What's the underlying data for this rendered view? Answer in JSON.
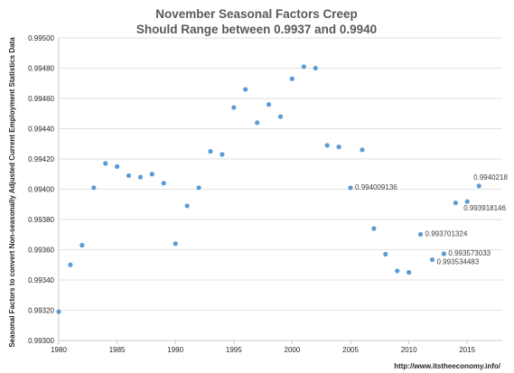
{
  "chart_data": {
    "type": "scatter",
    "title": [
      "November Seasonal Factors Creep",
      "Should Range between 0.9937 and  0.9940"
    ],
    "xlabel": "",
    "ylabel": "Seasonal Factors to convert Non-seasonally Adjusted Current Employment Statistics Data",
    "xlim": [
      1980,
      2018
    ],
    "ylim": [
      0.993,
      0.995
    ],
    "x_ticks": [
      "1980",
      "1985",
      "1990",
      "1995",
      "2000",
      "2005",
      "2010",
      "2015"
    ],
    "y_ticks": [
      "0.99300",
      "0.99320",
      "0.99340",
      "0.99360",
      "0.99380",
      "0.99400",
      "0.99420",
      "0.99440",
      "0.99460",
      "0.99480",
      "0.99500"
    ],
    "grid": "horizontal",
    "legend": "none",
    "series_color": "#5b9bd5",
    "x": [
      1980,
      1981,
      1982,
      1983,
      1984,
      1985,
      1986,
      1987,
      1988,
      1989,
      1990,
      1991,
      1992,
      1993,
      1994,
      1995,
      1996,
      1997,
      1998,
      1999,
      2000,
      2001,
      2002,
      2003,
      2004,
      2005,
      2006,
      2007,
      2008,
      2009,
      2010,
      2011,
      2012,
      2013,
      2014,
      2015,
      2016
    ],
    "y": [
      0.99319,
      0.9935,
      0.99363,
      0.99401,
      0.99417,
      0.99415,
      0.99409,
      0.99408,
      0.9941,
      0.99404,
      0.99364,
      0.99389,
      0.99401,
      0.99425,
      0.99423,
      0.99454,
      0.99466,
      0.99444,
      0.99456,
      0.99448,
      0.99473,
      0.99481,
      0.9948,
      0.99429,
      0.99428,
      0.994009136,
      0.99426,
      0.99374,
      0.99357,
      0.99346,
      0.99345,
      0.993701324,
      0.993534483,
      0.993573033,
      0.99391,
      0.993918146,
      0.9940218
    ],
    "annotations": [
      {
        "label": "0.994009136",
        "x": 2005,
        "y": 0.994009136
      },
      {
        "label": "0.993701324",
        "x": 2011,
        "y": 0.993701324
      },
      {
        "label": "0.993573033",
        "x": 2013,
        "y": 0.993573033
      },
      {
        "label": "0.993534483",
        "x": 2012,
        "y": 0.993534483
      },
      {
        "label": "0.9940218",
        "x": 2016,
        "y": 0.9940218
      },
      {
        "label": "0.993918146",
        "x": 2015,
        "y": 0.993918146
      }
    ]
  },
  "source_url": "http://www.itstheeconomy.info/"
}
